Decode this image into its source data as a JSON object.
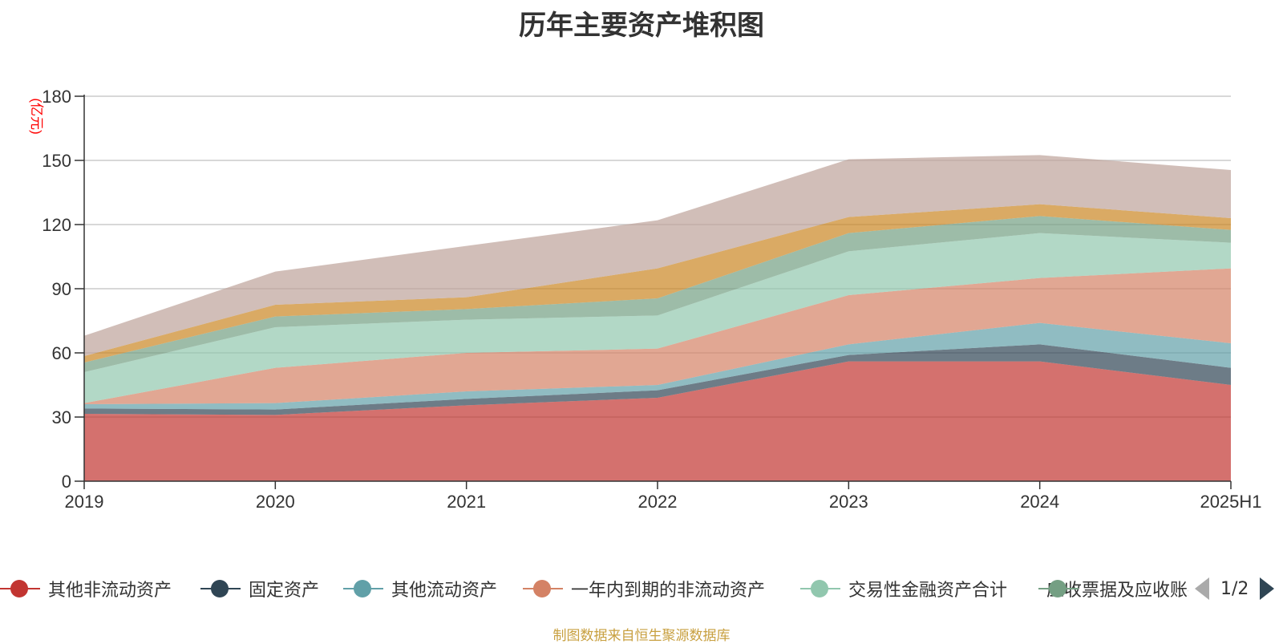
{
  "chart_data": {
    "type": "area",
    "title": "历年主要资产堆积图",
    "ylabel": "(亿元)",
    "categories": [
      "2019",
      "2020",
      "2021",
      "2022",
      "2023",
      "2024",
      "2025H1"
    ],
    "ylim": [
      0,
      180
    ],
    "yticks": [
      0,
      30,
      60,
      90,
      120,
      150,
      180
    ],
    "stacked": true,
    "grid": true,
    "series": [
      {
        "name": "其他非流动资产",
        "color": "#c23531",
        "values": [
          31.5,
          31,
          35.5,
          39,
          56,
          56,
          45
        ]
      },
      {
        "name": "固定资产",
        "color": "#2f4554",
        "values": [
          2.5,
          2.5,
          3,
          3.5,
          3,
          8,
          8
        ]
      },
      {
        "name": "其他流动资产",
        "color": "#61a0a8",
        "values": [
          2,
          3,
          3.5,
          2.5,
          5,
          10,
          11.5
        ]
      },
      {
        "name": "一年内到期的非流动资产",
        "color": "#d48265",
        "values": [
          0.5,
          16.5,
          18,
          17,
          23,
          21,
          35
        ]
      },
      {
        "name": "交易性金融资产合计",
        "color": "#91c7ae",
        "values": [
          14.5,
          19,
          15.5,
          15.5,
          20.5,
          21,
          12
        ]
      },
      {
        "name": "应收票据及应收账款",
        "color": "#749f83",
        "values": [
          4.5,
          5,
          5,
          8,
          8.5,
          8,
          6
        ]
      },
      {
        "name": "",
        "color": "#ca8622",
        "values": [
          3,
          5.5,
          5.5,
          14,
          7.5,
          5.5,
          5.5
        ]
      },
      {
        "name": "",
        "color": "#bda29a",
        "values": [
          9.5,
          15.5,
          24,
          22.5,
          27,
          23,
          22.5
        ]
      }
    ],
    "legend_position": "bottom"
  },
  "legend": {
    "items": [
      {
        "label": "其他非流动资产",
        "color": "#c23531"
      },
      {
        "label": "固定资产",
        "color": "#2f4554"
      },
      {
        "label": "其他流动资产",
        "color": "#61a0a8"
      },
      {
        "label": "一年内到期的非流动资产",
        "color": "#d48265"
      },
      {
        "label": "交易性金融资产合计",
        "color": "#91c7ae"
      },
      {
        "label": "应收票据及应收账款",
        "color": "#749f83"
      }
    ],
    "page_text": "1/2"
  },
  "source_text": "制图数据来自恒生聚源数据库"
}
